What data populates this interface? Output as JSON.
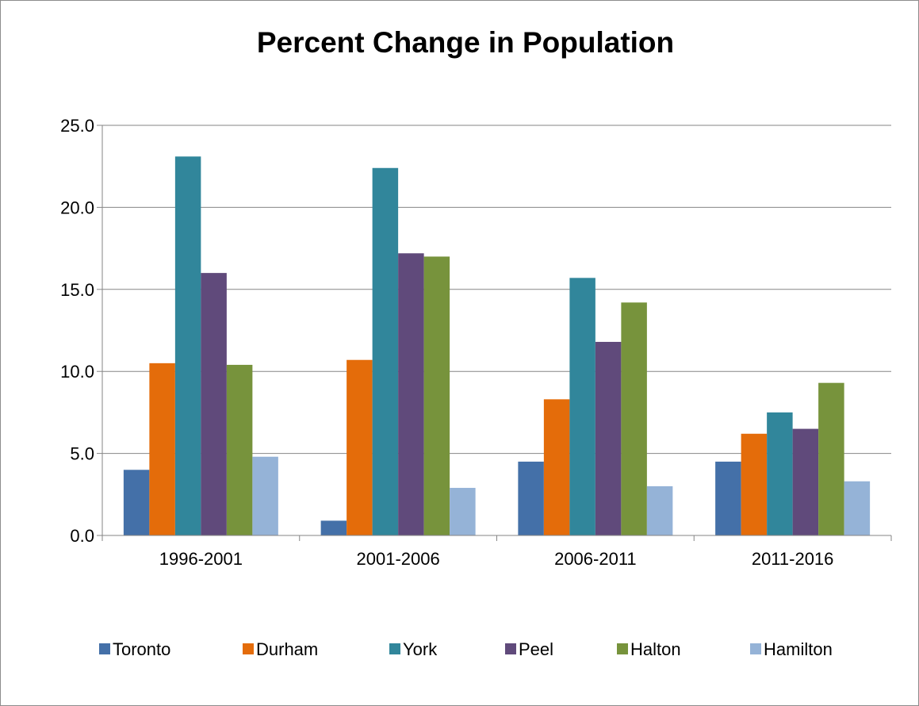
{
  "chart_data": {
    "type": "bar",
    "title": "Percent Change in Population",
    "xlabel": "",
    "ylabel": "",
    "categories": [
      "1996-2001",
      "2001-2006",
      "2006-2011",
      "2011-2016"
    ],
    "series": [
      {
        "name": "Toronto",
        "color": "#4470a8",
        "values": [
          4.0,
          0.9,
          4.5,
          4.5
        ]
      },
      {
        "name": "Durham",
        "color": "#e46c0a",
        "values": [
          10.5,
          10.7,
          8.3,
          6.2
        ]
      },
      {
        "name": "York",
        "color": "#31869b",
        "values": [
          23.1,
          22.4,
          15.7,
          7.5
        ]
      },
      {
        "name": "Peel",
        "color": "#604a7b",
        "values": [
          16.0,
          17.2,
          11.8,
          6.5
        ]
      },
      {
        "name": "Halton",
        "color": "#77933c",
        "values": [
          10.4,
          17.0,
          14.2,
          9.3
        ]
      },
      {
        "name": "Hamilton",
        "color": "#95b3d7",
        "values": [
          4.8,
          2.9,
          3.0,
          3.3
        ]
      }
    ],
    "yticks": [
      "0.0",
      "5.0",
      "10.0",
      "15.0",
      "20.0",
      "25.0"
    ],
    "ylim": [
      0,
      25
    ],
    "grid": true,
    "legend_position": "bottom"
  }
}
